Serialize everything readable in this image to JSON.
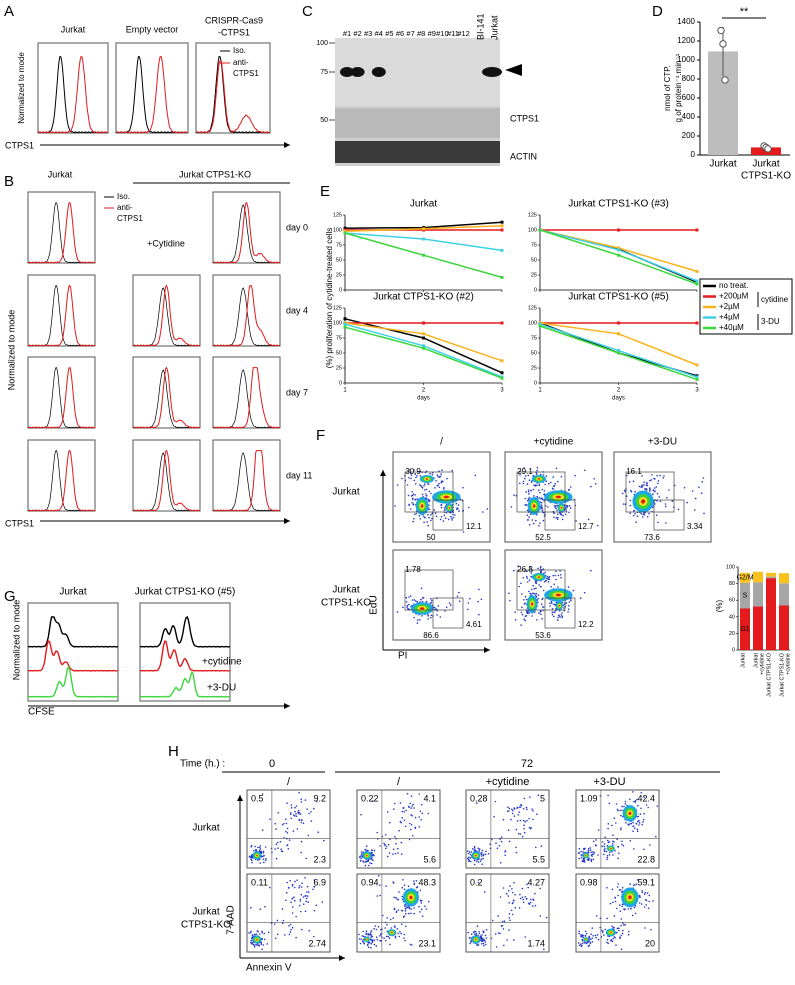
{
  "figure": {
    "A": {
      "label": "A",
      "titles": [
        "Jurkat",
        "Empty vector",
        "CRISPR-Cas9",
        "-CTPS1"
      ],
      "legend": [
        "Iso.",
        "anti-",
        "CTPS1"
      ],
      "y_axis": "Normalized to mode",
      "x_axis": "CTPS1"
    },
    "B": {
      "label": "B",
      "titles": [
        "Jurkat",
        "Jurkat CTPS1-KO"
      ],
      "legend": [
        "Iso.",
        "anti-",
        "CTPS1"
      ],
      "treatment": "+Cytidine",
      "days": [
        "day 0",
        "day 4",
        "day 7",
        "day 11"
      ],
      "y_axis": "Normalized to mode",
      "x_axis": "CTPS1"
    },
    "C": {
      "label": "C",
      "lanes": [
        "#1",
        "#2",
        "#3",
        "#4",
        "#5",
        "#6",
        "#7",
        "#8",
        "#9",
        "#10",
        "#11",
        "#12",
        "BI-141",
        "Jurkat"
      ],
      "markers": [
        "100",
        "75",
        "50"
      ],
      "bands": [
        "CTPS1",
        "ACTIN"
      ]
    },
    "F": {
      "label": "F",
      "columns": [
        "/",
        "+cytidine",
        "+3-DU"
      ],
      "rows": [
        [
          "Jurkat"
        ],
        [
          "Jurkat",
          "CTPS1-KO"
        ]
      ],
      "y_axis": "EdU",
      "x_axis": "PI",
      "gates": [
        [
          [
            30.9,
            12.1,
            50
          ],
          [
            29.1,
            12.7,
            52.5
          ],
          [
            16.1,
            3.34,
            73.6
          ]
        ],
        [
          [
            1.78,
            4.61,
            86.6
          ],
          [
            26.8,
            12.2,
            53.6
          ]
        ]
      ]
    },
    "G": {
      "label": "G",
      "titles": [
        "Jurkat",
        "Jurkat CTPS1-KO (#5)"
      ],
      "treatments": [
        "+cytidine",
        "+3-DU"
      ],
      "y_axis": "Normalized to mode",
      "x_axis": "CFSE"
    },
    "H": {
      "label": "H",
      "time_label": "Time (h.) :",
      "times": [
        "0",
        "72"
      ],
      "columns": [
        "/",
        "/",
        "+cytidine",
        "+3-DU"
      ],
      "rows": [
        [
          "Jurkat"
        ],
        [
          "Jurkat",
          "CTPS1-KO"
        ]
      ],
      "y_axis": "7-AAD",
      "x_axis": "Annexin V",
      "quadrants": [
        [
          [
            0.5,
            9.2,
            2.3
          ],
          [
            0.22,
            4.1,
            5.6
          ],
          [
            0.28,
            5,
            5.5
          ],
          [
            1.09,
            42.4,
            22.8
          ]
        ],
        [
          [
            0.11,
            6.9,
            2.74
          ],
          [
            0.94,
            48.3,
            23.1
          ],
          [
            0.2,
            4.27,
            1.74
          ],
          [
            0.98,
            59.1,
            20
          ]
        ]
      ]
    }
  },
  "chart_data": [
    {
      "panel": "D",
      "type": "bar",
      "y_label": [
        "nmol of CTP.",
        "g of protein⁻¹.min⁻¹"
      ],
      "annotation": "**",
      "categories": [
        [
          "Jurkat"
        ],
        [
          "Jurkat",
          "CTPS1-KO"
        ]
      ],
      "values": [
        1090,
        80
      ],
      "errors": [
        260,
        15
      ],
      "points": [
        [
          1310,
          1170,
          790
        ],
        [
          95,
          80,
          65
        ]
      ],
      "colors": [
        "#bdbdbd",
        "#e41a1c"
      ],
      "ylim": [
        0,
        1400
      ],
      "yticks": [
        0,
        200,
        400,
        600,
        800,
        1000,
        1200,
        1400
      ]
    },
    {
      "panel": "E",
      "type": "line",
      "y_label": "(%) proliferation of cytidine-treated cells",
      "x_label": "days",
      "x": [
        1,
        2,
        3
      ],
      "xticks": [
        1,
        2,
        3
      ],
      "ylim": [
        0,
        125
      ],
      "yticks": [
        0,
        25,
        50,
        75,
        100,
        125
      ],
      "series": [
        {
          "name": "no treat.",
          "color": "#000000"
        },
        {
          "name": "+200µM",
          "color": "#e41a1c"
        },
        {
          "name": "+2µM",
          "color": "#f9b21c"
        },
        {
          "name": "+4µM",
          "color": "#3fd0e6"
        },
        {
          "name": "+40µM",
          "color": "#3cd63c"
        }
      ],
      "groups": [
        "cytidine",
        "3-DU"
      ],
      "subplots": [
        {
          "title": "Jurkat",
          "values": [
            [
              103,
              104,
              113
            ],
            [
              100,
              100,
              100
            ],
            [
              98,
              102,
              107
            ],
            [
              95,
              85,
              66
            ],
            [
              95,
              58,
              21
            ]
          ]
        },
        {
          "title": "Jurkat CTPS1-KO (#3)",
          "values": [
            [
              100,
              68,
              13
            ],
            [
              100,
              100,
              100
            ],
            [
              100,
              70,
              31
            ],
            [
              100,
              67,
              15
            ],
            [
              100,
              58,
              10
            ]
          ]
        },
        {
          "title": "Jurkat CTPS1-KO (#2)",
          "values": [
            [
              107,
              75,
              17
            ],
            [
              100,
              100,
              100
            ],
            [
              100,
              82,
              37
            ],
            [
              98,
              62,
              10
            ],
            [
              93,
              58,
              8
            ]
          ]
        },
        {
          "title": "Jurkat CTPS1-KO (#5)",
          "values": [
            [
              100,
              50,
              12
            ],
            [
              100,
              100,
              100
            ],
            [
              100,
              82,
              30
            ],
            [
              98,
              54,
              10
            ],
            [
              95,
              50,
              6
            ]
          ]
        }
      ]
    },
    {
      "panel": "F",
      "type": "stacked-bar",
      "y_label": "(%)",
      "categories": [
        [
          "Jurkat"
        ],
        [
          "Jurkat",
          "+cytidine"
        ],
        [
          "Jurkat CTPS1-KO"
        ],
        [
          "Jurkat CTPS1-KO",
          "+cytidine"
        ]
      ],
      "series": [
        {
          "name": "G1",
          "color": "#e41a1c",
          "values": [
            50,
            52.5,
            86.6,
            53.6
          ]
        },
        {
          "name": "S",
          "color": "#a6a6a6",
          "values": [
            30.9,
            29.1,
            1.78,
            26.8
          ]
        },
        {
          "name": "G2/M",
          "color": "#f9c11c",
          "values": [
            12.1,
            12.7,
            4.61,
            12.2
          ]
        }
      ],
      "ylim": [
        0,
        100
      ],
      "yticks": [
        0,
        20,
        40,
        60,
        80,
        100
      ]
    }
  ]
}
